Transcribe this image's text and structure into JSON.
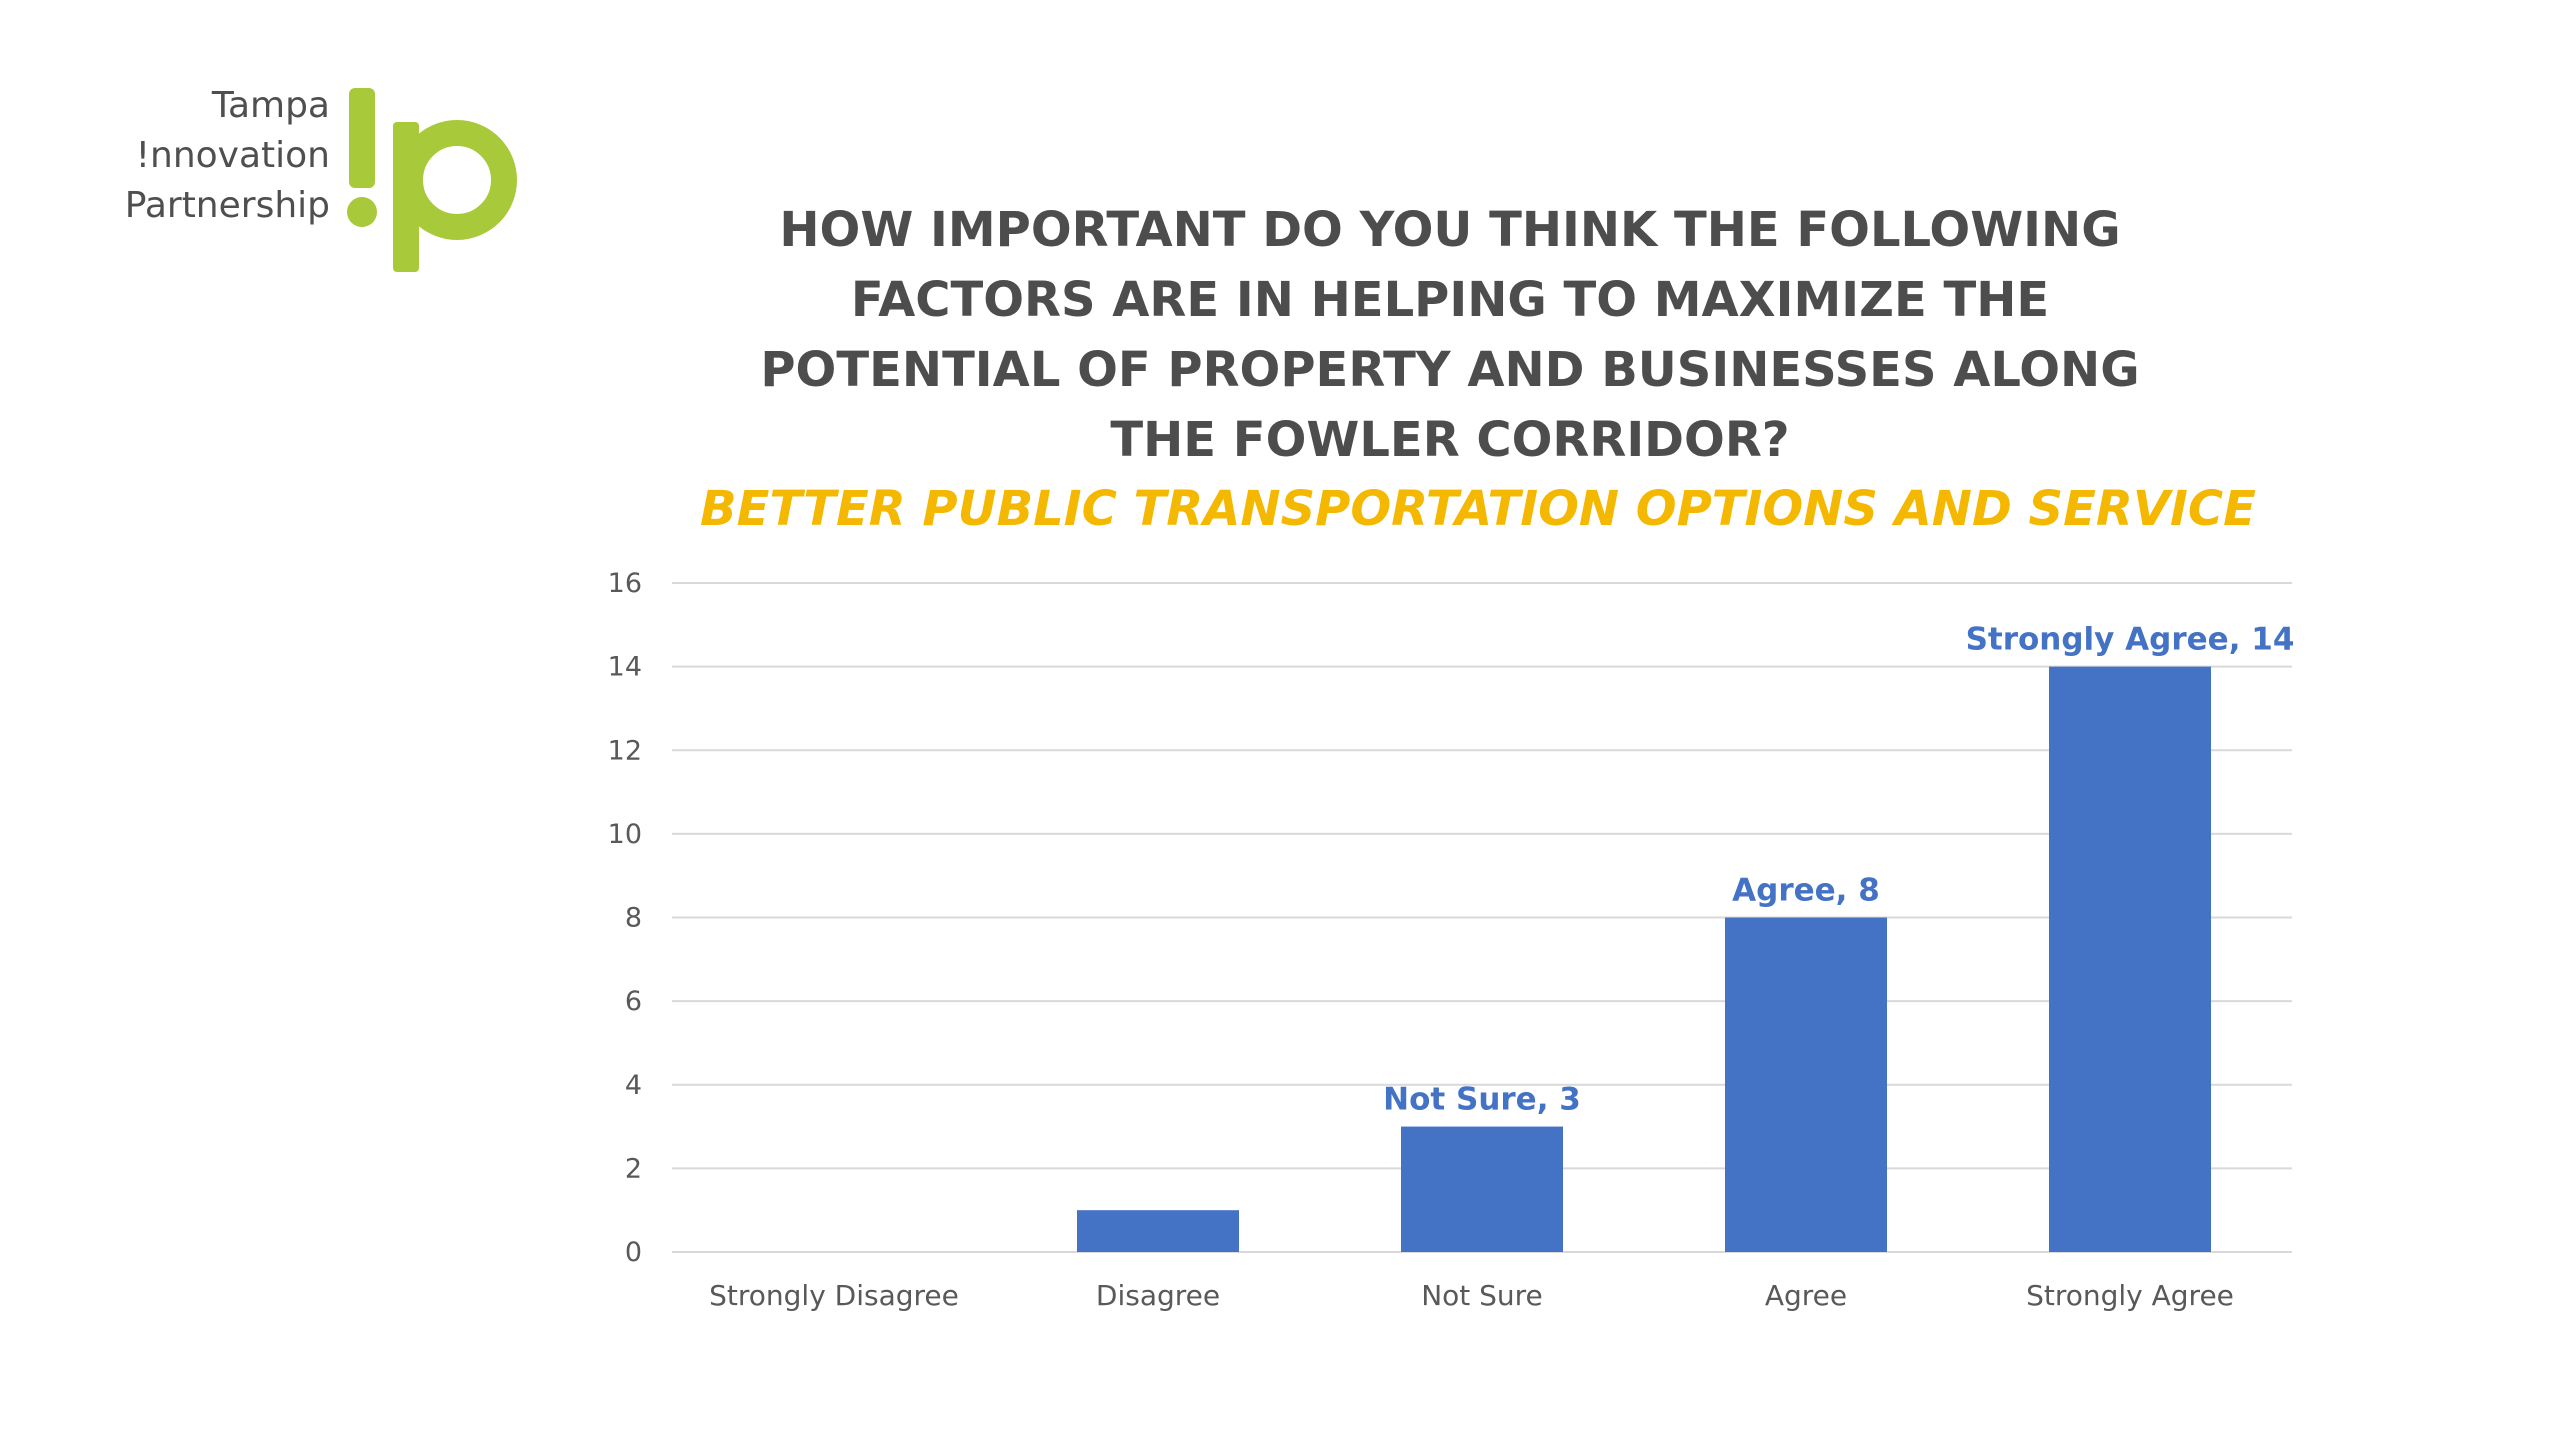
{
  "logo": {
    "line1": "Tampa",
    "line2": "!nnovation",
    "line3": "Partnership",
    "brand_color": "#a7c93a"
  },
  "title": "HOW IMPORTANT DO YOU THINK THE FOLLOWING FACTORS ARE IN HELPING TO MAXIMIZE THE POTENTIAL OF PROPERTY AND BUSINESSES ALONG THE FOWLER CORRIDOR?",
  "subtitle": "BETTER PUBLIC TRANSPORTATION OPTIONS AND SERVICE",
  "colors": {
    "title": "#4d4d4d",
    "subtitle": "#f5b800",
    "bar": "#4472c4",
    "data_label": "#4472c4",
    "grid": "#d9d9d9",
    "axis_text": "#595959"
  },
  "chart_data": {
    "type": "bar",
    "categories": [
      "Strongly Disagree",
      "Disagree",
      "Not Sure",
      "Agree",
      "Strongly Agree"
    ],
    "values": [
      0,
      1,
      3,
      8,
      14
    ],
    "data_labels": [
      "",
      "",
      "Not Sure, 3",
      "Agree, 8",
      "Strongly Agree, 14"
    ],
    "yticks": [
      "0",
      "2",
      "4",
      "6",
      "8",
      "10",
      "12",
      "14",
      "16"
    ],
    "ylim": [
      0,
      16
    ],
    "grid": true,
    "legend": "none"
  }
}
